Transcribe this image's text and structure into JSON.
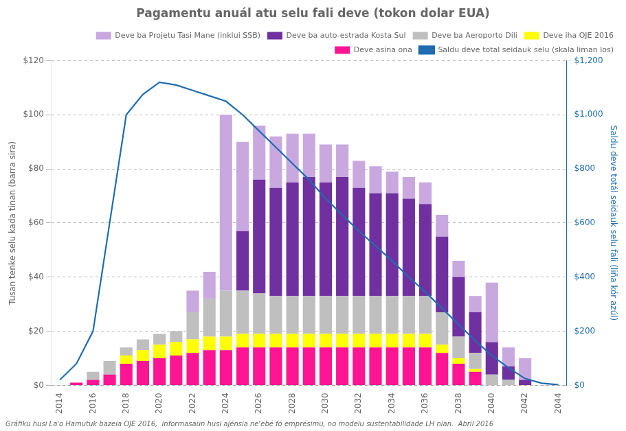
{
  "chart_data": {
    "type": "bar",
    "title": "Pagamentu anuál atu selu fali deve (tokon dolar EUA)",
    "footnote": "Gráfiku husi La'o Hamutuk bazeia OJE 2016,  informasaun husi ajénsia ne'ebé fó emprésimu, no modelu sustentabilidade LH nian.  Abril 2016",
    "ylabel": "Tusan tenke selu kada tinan (barra sira)",
    "y2label": "Saldu deve totál seidauk selu fali (liña kór azúl)",
    "categories": [
      2014,
      null,
      2016,
      null,
      2018,
      null,
      2020,
      null,
      2022,
      null,
      2024,
      null,
      2026,
      null,
      2028,
      null,
      2030,
      null,
      2032,
      null,
      2034,
      null,
      2036,
      null,
      2038,
      null,
      2040,
      null,
      2042,
      null,
      2044
    ],
    "series": [
      {
        "name": "Deve asina ona",
        "color": "#FF1493",
        "values": [
          0.0,
          1.0,
          2.0,
          4.0,
          8.0,
          9.0,
          10.0,
          11.0,
          12.0,
          13.0,
          13.0,
          14.0,
          14.0,
          14.0,
          14.0,
          14.0,
          14.0,
          14.0,
          14.0,
          14.0,
          14.0,
          14.0,
          14.0,
          12.0,
          8.0,
          5.0,
          0.0,
          0.0,
          0.0,
          0.0,
          0.0
        ]
      },
      {
        "name": "Deve iha OJE 2016",
        "color": "#FFFF00",
        "values": [
          0.0,
          0.0,
          0.0,
          0.0,
          3.0,
          4.0,
          5.0,
          5.0,
          5.0,
          5.0,
          5.0,
          5.0,
          5.0,
          5.0,
          5.0,
          5.0,
          5.0,
          5.0,
          5.0,
          5.0,
          5.0,
          5.0,
          5.0,
          3.0,
          2.0,
          1.0,
          0.0,
          0.0,
          0.0,
          0.0,
          0.0
        ]
      },
      {
        "name": "Deve ba Aeroporto Dili",
        "color": "#BFBFBF",
        "values": [
          0.0,
          0.0,
          3.0,
          5.0,
          3.0,
          4.0,
          4.0,
          4.0,
          10.0,
          14.0,
          17.0,
          16.0,
          15.0,
          14.0,
          14.0,
          14.0,
          14.0,
          14.0,
          14.0,
          14.0,
          14.0,
          14.0,
          14.0,
          12.0,
          8.0,
          6.0,
          4.0,
          2.0,
          0.0,
          0.0,
          0.0
        ]
      },
      {
        "name": "Deve ba auto-estrada Kosta Sul",
        "color": "#7030A0",
        "values": [
          0.0,
          0.0,
          0.0,
          0.0,
          0.0,
          0.0,
          0.0,
          0.0,
          0.0,
          0.0,
          0.0,
          22.0,
          42.0,
          40.0,
          42.0,
          44.0,
          42.0,
          44.0,
          40.0,
          38.0,
          38.0,
          36.0,
          34.0,
          28.0,
          22.0,
          15.0,
          12.0,
          5.0,
          2.0,
          0.0,
          0.0
        ]
      },
      {
        "name": "Deve ba Projetu Tasi Mane (inklui SSB)",
        "color": "#C9A8E0",
        "values": [
          0.0,
          0.0,
          0.0,
          0.0,
          0.0,
          0.0,
          0.0,
          0.0,
          8.0,
          10.0,
          65.0,
          33.0,
          20.0,
          19.0,
          18.0,
          16.0,
          14.0,
          12.0,
          10.0,
          10.0,
          8.0,
          8.0,
          8.0,
          8.0,
          6.0,
          6.0,
          22.0,
          7.0,
          8.0,
          0.0,
          0.0
        ]
      },
      {
        "name": "Saldu deve total seidauk selu (skala liman los)",
        "type": "line",
        "axis": "y2",
        "color": "#1F6CB0",
        "values": [
          20,
          80,
          200,
          600,
          1000,
          1075,
          1120,
          1110,
          1090,
          1070,
          1050,
          1000,
          940,
          880,
          820,
          760,
          690,
          630,
          570,
          515,
          460,
          400,
          345,
          285,
          225,
          165,
          110,
          65,
          25,
          8,
          2
        ]
      }
    ],
    "ylim": [
      0,
      120
    ],
    "yticks": [
      {
        "value": 0,
        "label": "$0"
      },
      {
        "value": 20,
        "label": "$20"
      },
      {
        "value": 40,
        "label": "$40"
      },
      {
        "value": 60,
        "label": "$60"
      },
      {
        "value": 80,
        "label": "$80"
      },
      {
        "value": 100,
        "label": "$100"
      },
      {
        "value": 120,
        "label": "$120"
      }
    ],
    "y2lim": [
      0,
      1200
    ],
    "y2ticks": [
      {
        "value": 0,
        "label": "$0"
      },
      {
        "value": 200,
        "label": "$200"
      },
      {
        "value": 400,
        "label": "$400"
      },
      {
        "value": 600,
        "label": "$600"
      },
      {
        "value": 800,
        "label": "$800"
      },
      {
        "value": 1000,
        "label": "$1,000"
      },
      {
        "value": 1200,
        "label": "$1,200"
      }
    ],
    "stacked": true,
    "grid": true,
    "legend": "upper right"
  }
}
